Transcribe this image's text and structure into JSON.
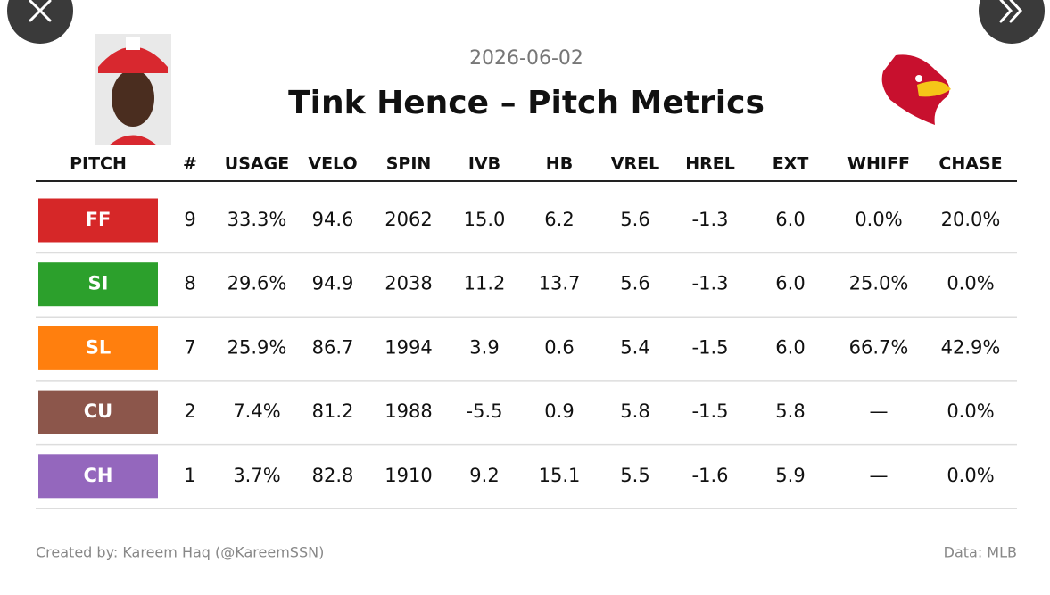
{
  "date": "2026-06-02",
  "title": "Tink Hence – Pitch Metrics",
  "table": {
    "columns": [
      "PITCH",
      "#",
      "USAGE",
      "VELO",
      "SPIN",
      "IVB",
      "HB",
      "VREL",
      "HREL",
      "EXT",
      "WHIFF",
      "CHASE"
    ],
    "rows": [
      {
        "color": "#d62728",
        "cells": [
          "FF",
          "9",
          "33.3%",
          "94.6",
          "2062",
          "15.0",
          "6.2",
          "5.6",
          "-1.3",
          "6.0",
          "0.0%",
          "20.0%"
        ]
      },
      {
        "color": "#2ca02c",
        "cells": [
          "SI",
          "8",
          "29.6%",
          "94.9",
          "2038",
          "11.2",
          "13.7",
          "5.6",
          "-1.3",
          "6.0",
          "25.0%",
          "0.0%"
        ]
      },
      {
        "color": "#ff7f0e",
        "cells": [
          "SL",
          "7",
          "25.9%",
          "86.7",
          "1994",
          "3.9",
          "0.6",
          "5.4",
          "-1.5",
          "6.0",
          "66.7%",
          "42.9%"
        ]
      },
      {
        "color": "#8c564b",
        "cells": [
          "CU",
          "2",
          "7.4%",
          "81.2",
          "1988",
          "-5.5",
          "0.9",
          "5.8",
          "-1.5",
          "5.8",
          "—",
          "0.0%"
        ]
      },
      {
        "color": "#9467bd",
        "cells": [
          "CH",
          "1",
          "3.7%",
          "82.8",
          "1910",
          "9.2",
          "15.1",
          "5.5",
          "-1.6",
          "5.9",
          "—",
          "0.0%"
        ]
      }
    ]
  },
  "footer": {
    "credit": "Created by: Kareem Haq (@KareemSSN)",
    "source": "Data: MLB"
  }
}
